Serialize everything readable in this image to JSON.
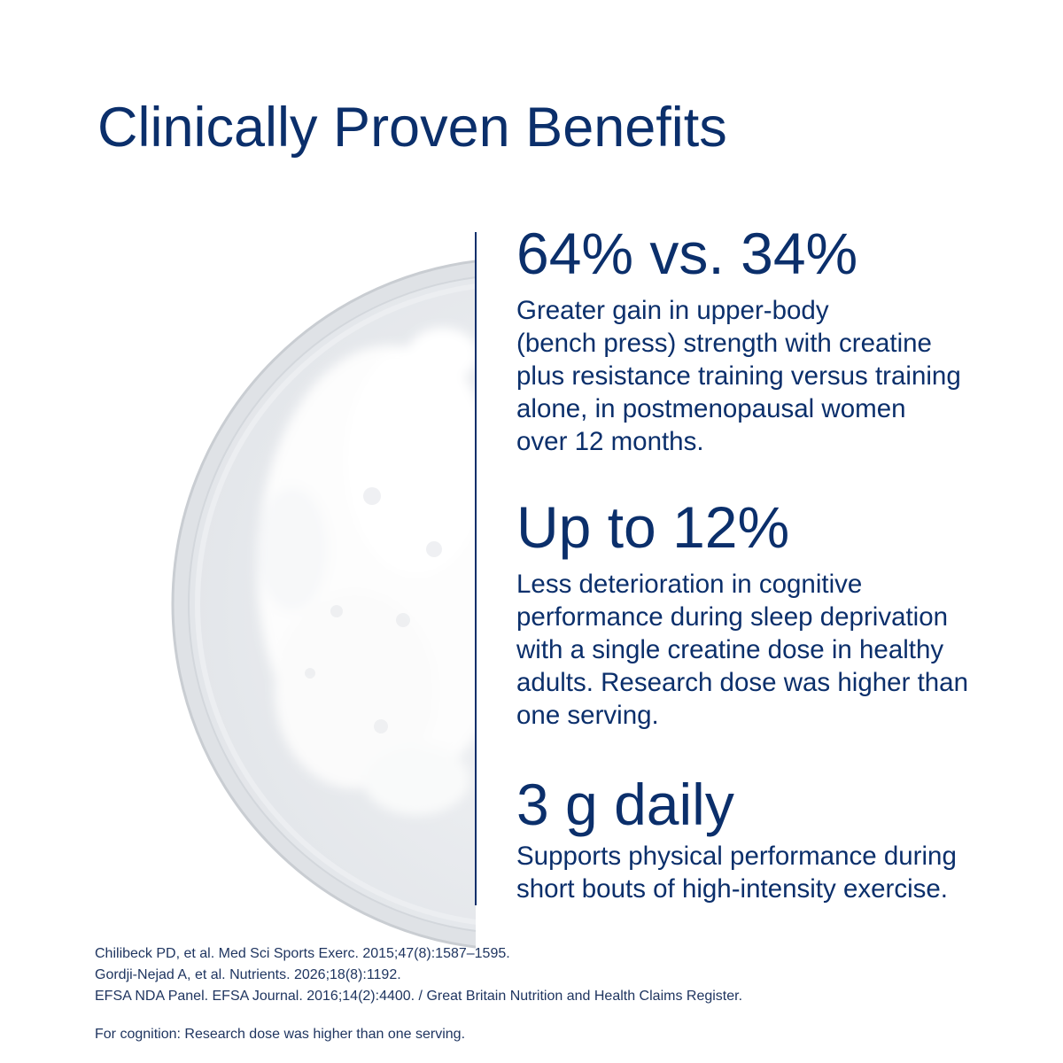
{
  "header": {
    "title": "Clinically Proven Benefits"
  },
  "stats": [
    {
      "headline": "64% vs. 34%",
      "body_lines": [
        "Greater gain in upper-body",
        "(bench press) strength with creatine",
        "plus resistance training versus training",
        "alone, in postmenopausal women",
        "over 12 months."
      ]
    },
    {
      "headline": "Up to 12%",
      "body_lines": [
        "Less deterioration in cognitive",
        "performance during sleep deprivation",
        "with a single creatine dose in healthy",
        "adults. Research dose was higher than",
        "one serving."
      ]
    },
    {
      "headline": "3 g daily",
      "body_lines": [
        "Supports physical performance during",
        "short bouts of high-intensity exercise."
      ]
    }
  ],
  "references": [
    "Chilibeck PD, et al. Med Sci Sports Exerc. 2015;47(8):1587–1595.",
    "Gordji-Nejad A, et al. Nutrients. 2026;18(8):1192.",
    "EFSA NDA Panel. EFSA Journal. 2016;14(2):4400. / Great Britain Nutrition and Health Claims Register."
  ],
  "note": "For cognition: Research dose was higher than one serving."
}
